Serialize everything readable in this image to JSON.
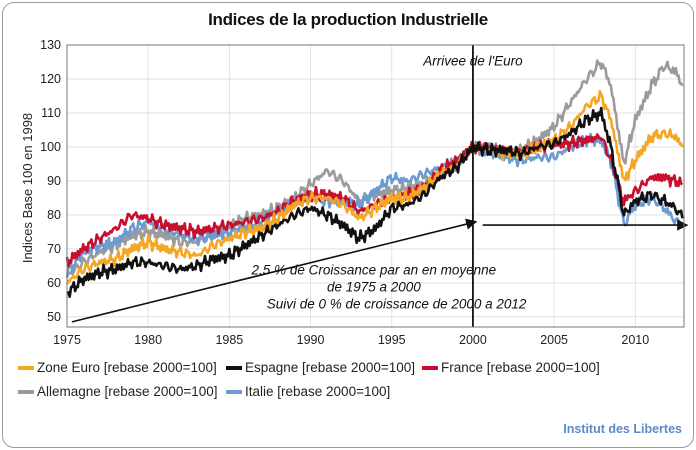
{
  "source": "Institut des Libertes",
  "chart_data": {
    "type": "line",
    "title": "Indices de la production Industrielle",
    "xlabel": "",
    "ylabel": "Indices Base 100 en 1998",
    "xlim": [
      1975,
      2013
    ],
    "ylim": [
      47,
      130
    ],
    "x_ticks": [
      1975,
      1980,
      1985,
      1990,
      1995,
      2000,
      2005,
      2010
    ],
    "y_ticks": [
      50,
      60,
      70,
      80,
      90,
      100,
      110,
      120,
      130
    ],
    "grid": true,
    "legend_position": "bottom",
    "series": [
      {
        "name": "Zone Euro [rebase 2000=100]",
        "color": "#f5a623",
        "x": [
          1975,
          1976,
          1977,
          1978,
          1979,
          1980,
          1981,
          1982,
          1983,
          1984,
          1985,
          1986,
          1987,
          1988,
          1989,
          1990,
          1991,
          1992,
          1993,
          1994,
          1995,
          1996,
          1997,
          1998,
          1999,
          2000,
          2001,
          2002,
          2003,
          2004,
          2005,
          2006,
          2007,
          2007.9,
          2008.5,
          2009.3,
          2010,
          2011,
          2011.8,
          2012.5,
          2012.9
        ],
        "y": [
          60,
          64,
          66,
          67,
          70,
          72,
          70,
          69,
          68,
          71,
          73,
          75,
          76,
          79,
          83,
          85,
          85,
          83,
          79,
          82,
          85,
          85,
          88,
          92,
          95,
          100,
          99,
          98,
          98,
          100,
          102,
          106,
          112,
          115,
          108,
          90,
          96,
          103,
          104,
          103,
          100
        ]
      },
      {
        "name": "Espagne [rebase 2000=100]",
        "color": "#111111",
        "x": [
          1975,
          1976,
          1977,
          1978,
          1979,
          1980,
          1981,
          1982,
          1983,
          1984,
          1985,
          1986,
          1987,
          1988,
          1989,
          1990,
          1991,
          1992,
          1993,
          1994,
          1995,
          1996,
          1997,
          1998,
          1999,
          2000,
          2001,
          2002,
          2003,
          2004,
          2005,
          2006,
          2007,
          2007.9,
          2008.5,
          2009.3,
          2010,
          2011,
          2011.8,
          2012.5,
          2012.9
        ],
        "y": [
          57,
          61,
          63,
          64,
          66,
          66,
          65,
          64,
          65,
          67,
          68,
          71,
          74,
          77,
          80,
          82,
          80,
          77,
          73,
          76,
          82,
          83,
          86,
          91,
          94,
          100,
          99,
          99,
          98,
          100,
          101,
          104,
          108,
          110,
          100,
          80,
          84,
          86,
          84,
          82,
          79
        ]
      },
      {
        "name": "France [rebase 2000=100]",
        "color": "#c8102e",
        "x": [
          1975,
          1976,
          1977,
          1978,
          1979,
          1980,
          1981,
          1982,
          1983,
          1984,
          1985,
          1986,
          1987,
          1988,
          1989,
          1990,
          1991,
          1992,
          1993,
          1994,
          1995,
          1996,
          1997,
          1998,
          1999,
          2000,
          2001,
          2002,
          2003,
          2004,
          2005,
          2006,
          2007,
          2007.9,
          2008.5,
          2009.3,
          2010,
          2011,
          2011.8,
          2012.5,
          2012.9
        ],
        "y": [
          66,
          70,
          73,
          76,
          80,
          79,
          77,
          76,
          75,
          76,
          77,
          78,
          79,
          81,
          84,
          86,
          86,
          85,
          81,
          83,
          85,
          86,
          88,
          93,
          96,
          100,
          100,
          99,
          99,
          100,
          101,
          101,
          102,
          103,
          96,
          84,
          87,
          91,
          91,
          90,
          89
        ]
      },
      {
        "name": "Allemagne [rebase 2000=100]",
        "color": "#9b9b9b",
        "x": [
          1975,
          1976,
          1977,
          1978,
          1979,
          1980,
          1981,
          1982,
          1983,
          1984,
          1985,
          1986,
          1987,
          1988,
          1989,
          1990,
          1991,
          1992,
          1993,
          1994,
          1995,
          1996,
          1997,
          1998,
          1999,
          2000,
          2001,
          2002,
          2003,
          2004,
          2005,
          2006,
          2007,
          2007.9,
          2008.5,
          2009.3,
          2010,
          2011,
          2011.8,
          2012.5,
          2012.9
        ],
        "y": [
          62,
          66,
          69,
          71,
          74,
          75,
          74,
          72,
          72,
          74,
          77,
          79,
          80,
          82,
          85,
          89,
          93,
          90,
          84,
          86,
          87,
          88,
          89,
          92,
          95,
          100,
          100,
          98,
          99,
          102,
          106,
          113,
          120,
          125,
          118,
          95,
          108,
          118,
          124,
          122,
          118
        ]
      },
      {
        "name": "Italie [rebase 2000=100]",
        "color": "#6b9bd1",
        "x": [
          1975,
          1976,
          1977,
          1978,
          1979,
          1980,
          1981,
          1982,
          1983,
          1984,
          1985,
          1986,
          1987,
          1988,
          1989,
          1990,
          1991,
          1992,
          1993,
          1994,
          1995,
          1996,
          1997,
          1998,
          1999,
          2000,
          2001,
          2002,
          2003,
          2004,
          2005,
          2006,
          2007,
          2007.9,
          2008.5,
          2009.3,
          2010,
          2011,
          2011.8,
          2012.5,
          2012.9
        ],
        "y": [
          63,
          69,
          71,
          72,
          76,
          78,
          76,
          74,
          73,
          74,
          75,
          76,
          78,
          81,
          84,
          85,
          84,
          84,
          83,
          87,
          91,
          90,
          92,
          94,
          95,
          100,
          99,
          97,
          96,
          97,
          97,
          100,
          102,
          102,
          96,
          77,
          83,
          85,
          82,
          78,
          77
        ]
      }
    ],
    "annotations": [
      {
        "text": "Arrivee de l'Euro",
        "x": 2000,
        "y": 124
      },
      {
        "text": "2.5 % de Croissance par an en moyenne",
        "x": 1993.9,
        "y": 62.5
      },
      {
        "text": "de 1975  a 2000",
        "x": 1993.9,
        "y": 57.5
      },
      {
        "text": "Suivi de 0 % de croissance de  2000 a 2012",
        "x": 1995.3,
        "y": 52.5
      }
    ],
    "euro_line_x": 2000,
    "trend_arrows": [
      {
        "from": [
          1975.3,
          48.5
        ],
        "to": [
          2000.2,
          78
        ]
      },
      {
        "from": [
          2000.6,
          77
        ],
        "to": [
          2013.2,
          77
        ]
      }
    ]
  }
}
